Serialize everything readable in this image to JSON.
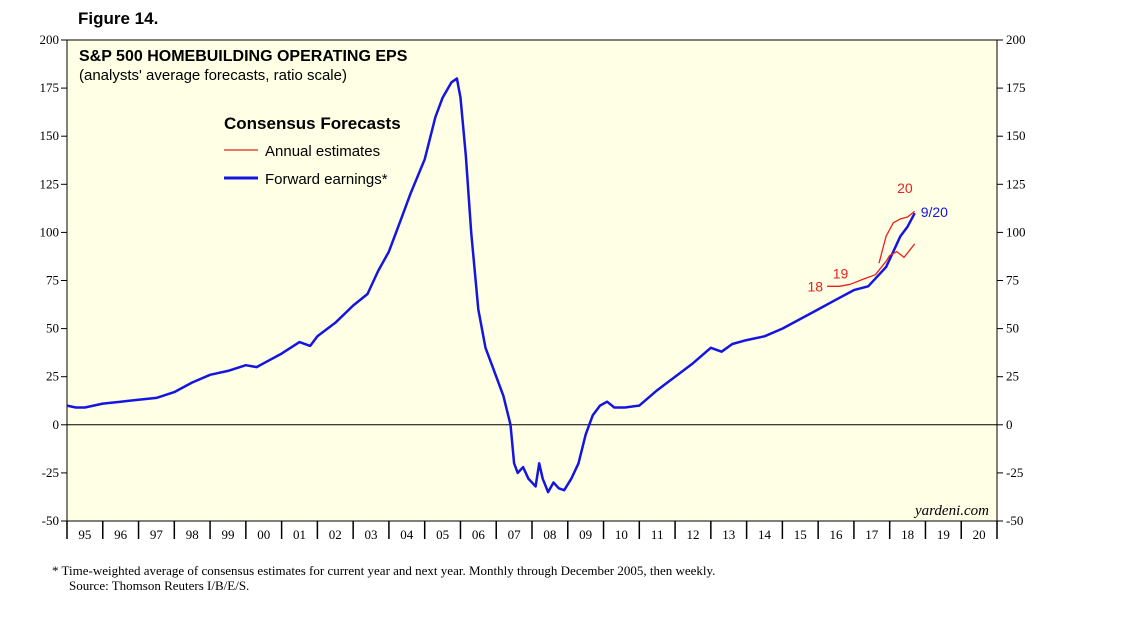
{
  "figure_label": "Figure 14.",
  "chart_data": {
    "type": "line",
    "title": "S&P 500 HOMEBUILDING OPERATING EPS",
    "subtitle": "(analysts' average forecasts, ratio scale)",
    "ylim": [
      -50,
      200
    ],
    "yticks": [
      200,
      175,
      150,
      125,
      100,
      75,
      50,
      25,
      0,
      -25,
      -50
    ],
    "ytick_labels": [
      "200",
      "175",
      "150",
      "125",
      "100",
      "75",
      "50",
      "25",
      "0",
      "-25",
      "-50"
    ],
    "xlim": [
      1995,
      2021
    ],
    "x_categories": [
      "95",
      "96",
      "97",
      "98",
      "99",
      "00",
      "01",
      "02",
      "03",
      "04",
      "05",
      "06",
      "07",
      "08",
      "09",
      "10",
      "11",
      "12",
      "13",
      "14",
      "15",
      "16",
      "17",
      "18",
      "19",
      "20"
    ],
    "legend": {
      "title": "Consensus Forecasts",
      "items": [
        {
          "label": "Annual estimates",
          "color": "#e8201e"
        },
        {
          "label": "Forward earnings*",
          "color": "#1515e0"
        }
      ]
    },
    "series": [
      {
        "name": "Forward earnings*",
        "color": "#1515e0",
        "x": [
          1995.0,
          1995.25,
          1995.5,
          1996.0,
          1996.5,
          1997.0,
          1997.5,
          1998.0,
          1998.5,
          1999.0,
          1999.5,
          2000.0,
          2000.3,
          2000.6,
          2001.0,
          2001.5,
          2001.8,
          2002.0,
          2002.5,
          2003.0,
          2003.4,
          2003.7,
          2004.0,
          2004.3,
          2004.6,
          2005.0,
          2005.3,
          2005.5,
          2005.75,
          2005.9,
          2006.0,
          2006.15,
          2006.3,
          2006.5,
          2006.7,
          2006.9,
          2007.2,
          2007.4,
          2007.5,
          2007.6,
          2007.75,
          2007.9,
          2008.1,
          2008.2,
          2008.3,
          2008.45,
          2008.6,
          2008.75,
          2008.9,
          2009.1,
          2009.3,
          2009.5,
          2009.7,
          2009.9,
          2010.1,
          2010.3,
          2010.6,
          2011.0,
          2011.5,
          2012.0,
          2012.5,
          2013.0,
          2013.3,
          2013.6,
          2014.0,
          2014.5,
          2015.0,
          2015.5,
          2016.0,
          2016.5,
          2017.0,
          2017.4,
          2017.7,
          2017.9,
          2018.1,
          2018.3,
          2018.5,
          2018.7
        ],
        "values": [
          10,
          9,
          9,
          11,
          12,
          13,
          14,
          17,
          22,
          26,
          28,
          31,
          30,
          33,
          37,
          43,
          41,
          46,
          53,
          62,
          68,
          80,
          90,
          105,
          120,
          138,
          160,
          170,
          178,
          180,
          170,
          140,
          100,
          60,
          40,
          30,
          15,
          0,
          -20,
          -25,
          -22,
          -28,
          -32,
          -20,
          -28,
          -35,
          -30,
          -33,
          -34,
          -28,
          -20,
          -5,
          5,
          10,
          12,
          9,
          9,
          10,
          18,
          25,
          32,
          40,
          38,
          42,
          44,
          46,
          50,
          55,
          60,
          65,
          70,
          72,
          78,
          82,
          90,
          98,
          103,
          110
        ],
        "end_label": "9/20"
      },
      {
        "name": "18",
        "color": "#e8201e",
        "x": [
          2016.25,
          2016.6,
          2016.9
        ],
        "values": [
          72,
          72,
          73
        ],
        "label": "18"
      },
      {
        "name": "19",
        "color": "#e8201e",
        "x": [
          2016.9,
          2017.3,
          2017.6,
          2017.9,
          2018.0,
          2018.2,
          2018.4,
          2018.7
        ],
        "values": [
          73,
          76,
          78,
          85,
          88,
          90,
          87,
          94
        ],
        "label": "19"
      },
      {
        "name": "20",
        "color": "#e8201e",
        "x": [
          2017.7,
          2017.9,
          2018.1,
          2018.3,
          2018.5,
          2018.7
        ],
        "values": [
          84,
          98,
          105,
          107,
          108,
          111
        ],
        "label": "20"
      }
    ],
    "watermark": "yardeni.com"
  },
  "footnote_line1": "*   Time-weighted average of consensus estimates for current year and next year. Monthly through December 2005, then weekly.",
  "footnote_line2": "Source: Thomson Reuters I/B/E/S."
}
